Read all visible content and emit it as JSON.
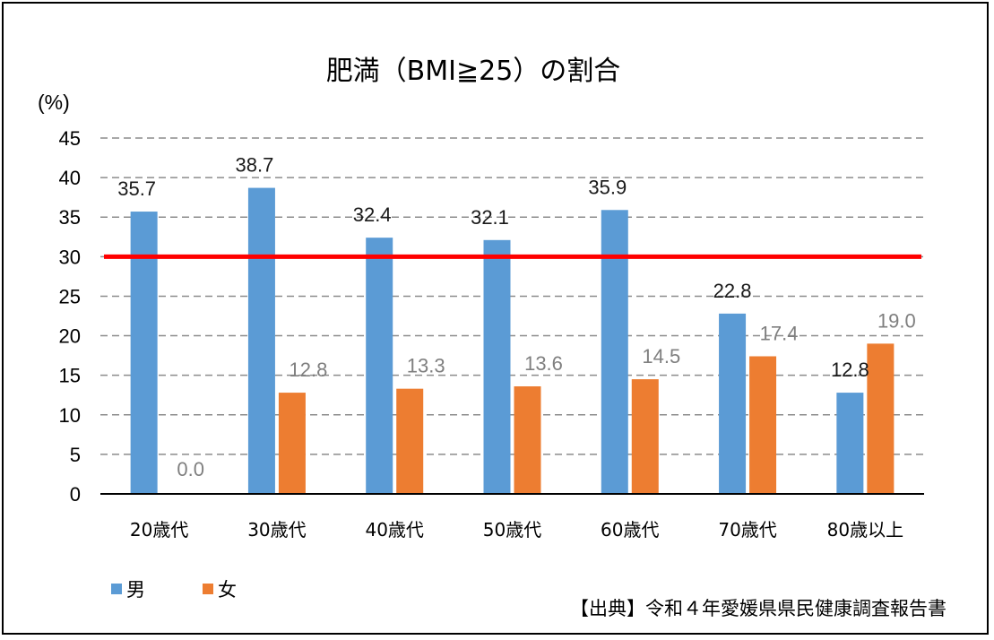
{
  "chart_data": {
    "type": "bar",
    "title": "肥満（BMI≧25）の割合",
    "ylabel": "(%)",
    "ylim": [
      0,
      45
    ],
    "yticks": [
      0,
      5,
      10,
      15,
      20,
      25,
      30,
      35,
      40,
      45
    ],
    "grid": true,
    "categories": [
      "20歳代",
      "30歳代",
      "40歳代",
      "50歳代",
      "60歳代",
      "70歳代",
      "80歳以上"
    ],
    "series": [
      {
        "name": "男",
        "color": "#5b9bd5",
        "values": [
          35.7,
          38.7,
          32.4,
          32.1,
          35.9,
          22.8,
          12.8
        ],
        "labels": [
          "35.7",
          "38.7",
          "32.4",
          "32.1",
          "35.9",
          "22.8",
          "12.8"
        ]
      },
      {
        "name": "女",
        "color": "#ed7d31",
        "values": [
          0.0,
          12.8,
          13.3,
          13.6,
          14.5,
          17.4,
          19.0
        ],
        "labels": [
          "0.0",
          "12.8",
          "13.3",
          "13.6",
          "14.5",
          "17.4",
          "19.0"
        ]
      }
    ],
    "reference_line": {
      "value": 30,
      "color": "#ff0000"
    },
    "legend_position": "bottom-left",
    "annotation": "【出典】令和４年愛媛県県民健康調査報告書"
  }
}
